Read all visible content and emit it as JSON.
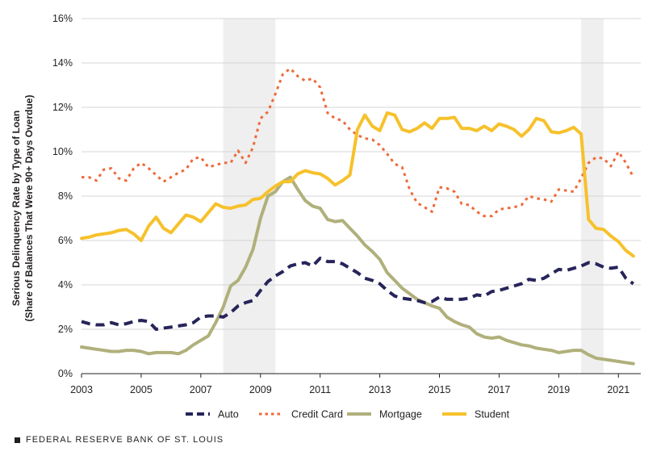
{
  "chart_data": {
    "type": "line",
    "title": "",
    "ylabel_line1": "Serious Delinquency Rate by Type of Loan",
    "ylabel_line2": "(Share of  Balances  That Were 90+ Days Overdue)",
    "xlabel": "",
    "xlim": [
      2003,
      2021.75
    ],
    "ylim": [
      0,
      16
    ],
    "x_ticks": [
      2003,
      2005,
      2007,
      2009,
      2011,
      2013,
      2015,
      2017,
      2019,
      2021
    ],
    "x_tick_labels": [
      "2003",
      "2005",
      "2007",
      "2009",
      "2011",
      "2013",
      "2015",
      "2017",
      "2019",
      "2021"
    ],
    "y_ticks": [
      0,
      2,
      4,
      6,
      8,
      10,
      12,
      14,
      16
    ],
    "y_tick_labels": [
      "0%",
      "2%",
      "4%",
      "6%",
      "8%",
      "10%",
      "12%",
      "14%",
      "16%"
    ],
    "grid": true,
    "recessions": [
      [
        2007.75,
        2009.5
      ],
      [
        2019.75,
        2020.5
      ]
    ],
    "legend_position": "bottom",
    "quarter_start": 2003,
    "series": [
      {
        "name": "Auto",
        "color": "#26245a",
        "dash": "dashed",
        "values": [
          2.35,
          2.25,
          2.2,
          2.2,
          2.3,
          2.2,
          2.25,
          2.35,
          2.4,
          2.35,
          2.0,
          2.05,
          2.1,
          2.15,
          2.2,
          2.3,
          2.55,
          2.6,
          2.6,
          2.55,
          2.75,
          3.05,
          3.2,
          3.3,
          3.75,
          4.15,
          4.4,
          4.6,
          4.85,
          4.95,
          5.0,
          4.85,
          5.2,
          5.05,
          5.05,
          4.95,
          4.75,
          4.55,
          4.3,
          4.2,
          4.05,
          3.75,
          3.5,
          3.4,
          3.35,
          3.3,
          3.2,
          3.25,
          3.45,
          3.35,
          3.35,
          3.35,
          3.4,
          3.55,
          3.5,
          3.7,
          3.75,
          3.85,
          3.95,
          4.05,
          4.25,
          4.2,
          4.3,
          4.5,
          4.7,
          4.65,
          4.75,
          4.85,
          5.0,
          4.95,
          4.8,
          4.75,
          4.8,
          4.3,
          4.05
        ]
      },
      {
        "name": "Credit Card",
        "color": "#ee6a3a",
        "dash": "dotted",
        "values": [
          8.85,
          8.85,
          8.7,
          9.2,
          9.25,
          8.8,
          8.7,
          9.25,
          9.5,
          9.25,
          8.95,
          8.65,
          8.85,
          9.05,
          9.2,
          9.7,
          9.75,
          9.3,
          9.4,
          9.5,
          9.5,
          10.05,
          9.5,
          10.2,
          11.5,
          11.8,
          12.6,
          13.5,
          13.75,
          13.4,
          13.2,
          13.3,
          12.9,
          11.75,
          11.5,
          11.4,
          11.0,
          10.75,
          10.6,
          10.55,
          10.3,
          9.9,
          9.45,
          9.3,
          8.3,
          7.7,
          7.5,
          7.3,
          8.4,
          8.35,
          8.2,
          7.65,
          7.6,
          7.3,
          7.1,
          7.1,
          7.4,
          7.45,
          7.5,
          7.6,
          8.0,
          7.9,
          7.85,
          7.75,
          8.3,
          8.25,
          8.2,
          8.8,
          9.5,
          9.75,
          9.7,
          9.35,
          10.0,
          9.5,
          8.85
        ]
      },
      {
        "name": "Mortgage",
        "color": "#b0b07c",
        "dash": "solid",
        "values": [
          1.2,
          1.15,
          1.1,
          1.05,
          1.0,
          1.0,
          1.05,
          1.05,
          1.0,
          0.9,
          0.95,
          0.95,
          0.95,
          0.9,
          1.05,
          1.3,
          1.5,
          1.7,
          2.3,
          3.0,
          3.95,
          4.2,
          4.8,
          5.6,
          7.0,
          8.0,
          8.2,
          8.65,
          8.85,
          8.3,
          7.8,
          7.55,
          7.45,
          6.95,
          6.85,
          6.9,
          6.55,
          6.2,
          5.8,
          5.5,
          5.15,
          4.55,
          4.2,
          3.85,
          3.6,
          3.35,
          3.2,
          3.05,
          2.95,
          2.55,
          2.35,
          2.2,
          2.1,
          1.8,
          1.65,
          1.6,
          1.65,
          1.5,
          1.4,
          1.3,
          1.25,
          1.15,
          1.1,
          1.05,
          0.95,
          1.0,
          1.05,
          1.05,
          0.85,
          0.7,
          0.65,
          0.6,
          0.55,
          0.5,
          0.45
        ]
      },
      {
        "name": "Student",
        "color": "#f6c12b",
        "dash": "solid",
        "values": [
          6.1,
          6.15,
          6.25,
          6.3,
          6.35,
          6.45,
          6.5,
          6.3,
          6.0,
          6.65,
          7.05,
          6.55,
          6.35,
          6.75,
          7.15,
          7.05,
          6.85,
          7.25,
          7.65,
          7.5,
          7.45,
          7.55,
          7.6,
          7.85,
          7.9,
          8.2,
          8.45,
          8.65,
          8.65,
          9.0,
          9.15,
          9.05,
          9.0,
          8.8,
          8.5,
          8.7,
          8.95,
          11.0,
          11.65,
          11.15,
          10.95,
          11.75,
          11.65,
          11.0,
          10.9,
          11.05,
          11.3,
          11.05,
          11.5,
          11.5,
          11.55,
          11.05,
          11.05,
          10.95,
          11.15,
          10.95,
          11.25,
          11.15,
          11.0,
          10.7,
          11.0,
          11.5,
          11.4,
          10.9,
          10.85,
          10.95,
          11.1,
          10.8,
          6.95,
          6.55,
          6.5,
          6.2,
          5.95,
          5.55,
          5.3
        ]
      }
    ]
  },
  "footer": {
    "text": "FEDERAL RESERVE BANK OF ST. LOUIS"
  }
}
